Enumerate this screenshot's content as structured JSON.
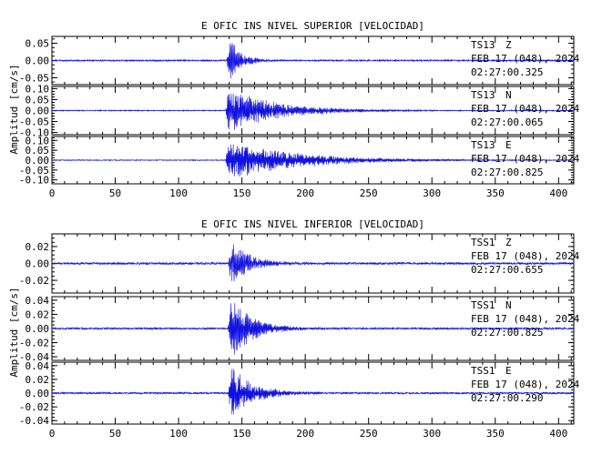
{
  "chart_data": {
    "type": "line",
    "x_ticks": [
      0,
      50,
      100,
      150,
      200,
      250,
      300,
      350,
      400
    ],
    "xlim": [
      0,
      412
    ],
    "groups": [
      {
        "title": "E OFIC INS NIVEL SUPERIOR [VELOCIDAD]",
        "ylabel": "Amplitud [cm/s]",
        "panels": [
          {
            "station": "TS13",
            "component": "Z",
            "date": "FEB 17 (048), 2024",
            "time": "02:27:00.325",
            "ylim": [
              -0.07,
              0.07
            ],
            "y_ticks": [
              "0.05",
              "0.00",
              "-0.05"
            ],
            "y_tick_values": [
              0.05,
              0.0,
              -0.05
            ],
            "onset": 138,
            "peak": 0.07,
            "decay": 10,
            "noise": 0.002
          },
          {
            "station": "TS13",
            "component": "N",
            "date": "FEB 17 (048), 2024",
            "time": "02:27:00.065",
            "ylim": [
              -0.11,
              0.11
            ],
            "y_ticks": [
              "0.10",
              "0.05",
              "0.00",
              "-0.05",
              "-0.10"
            ],
            "y_tick_values": [
              0.1,
              0.05,
              0.0,
              -0.05,
              -0.1
            ],
            "onset": 137,
            "peak": 0.09,
            "decay": 40,
            "noise": 0.002
          },
          {
            "station": "TS13",
            "component": "E",
            "date": "FEB 17 (048), 2024",
            "time": "02:27:00.825",
            "ylim": [
              -0.12,
              0.12
            ],
            "y_ticks": [
              "0.10",
              "0.05",
              "0.00",
              "-0.05",
              "-0.10"
            ],
            "y_tick_values": [
              0.1,
              0.05,
              0.0,
              -0.05,
              -0.1
            ],
            "onset": 137,
            "peak": 0.09,
            "decay": 55,
            "noise": 0.002
          }
        ]
      },
      {
        "title": "E OFIC INS NIVEL INFERIOR [VELOCIDAD]",
        "ylabel": "Amplitud [cm/s]",
        "panels": [
          {
            "station": "TSS1",
            "component": "Z",
            "date": "FEB 17 (048), 2024",
            "time": "02:27:00.655",
            "ylim": [
              -0.035,
              0.035
            ],
            "y_ticks": [
              "0.02",
              "0.00",
              "-0.02"
            ],
            "y_tick_values": [
              0.02,
              0.0,
              -0.02
            ],
            "onset": 139,
            "peak": 0.03,
            "decay": 15,
            "noise": 0.0012
          },
          {
            "station": "TSS1",
            "component": "N",
            "date": "FEB 17 (048), 2024",
            "time": "02:27:00.825",
            "ylim": [
              -0.045,
              0.045
            ],
            "y_ticks": [
              "0.04",
              "0.02",
              "0.00",
              "-0.02",
              "-0.04"
            ],
            "y_tick_values": [
              0.04,
              0.02,
              0.0,
              -0.02,
              -0.04
            ],
            "onset": 139,
            "peak": 0.045,
            "decay": 18,
            "noise": 0.0012
          },
          {
            "station": "TSS1",
            "component": "E",
            "date": "FEB 17 (048), 2024",
            "time": "02:27:00.290",
            "ylim": [
              -0.045,
              0.045
            ],
            "y_ticks": [
              "0.04",
              "0.02",
              "0.00",
              "-0.02",
              "-0.04"
            ],
            "y_tick_values": [
              0.04,
              0.02,
              0.0,
              -0.02,
              -0.04
            ],
            "onset": 139,
            "peak": 0.04,
            "decay": 18,
            "noise": 0.0012
          }
        ]
      }
    ]
  },
  "colors": {
    "trace": "#1010e0",
    "frame": "#000000"
  }
}
